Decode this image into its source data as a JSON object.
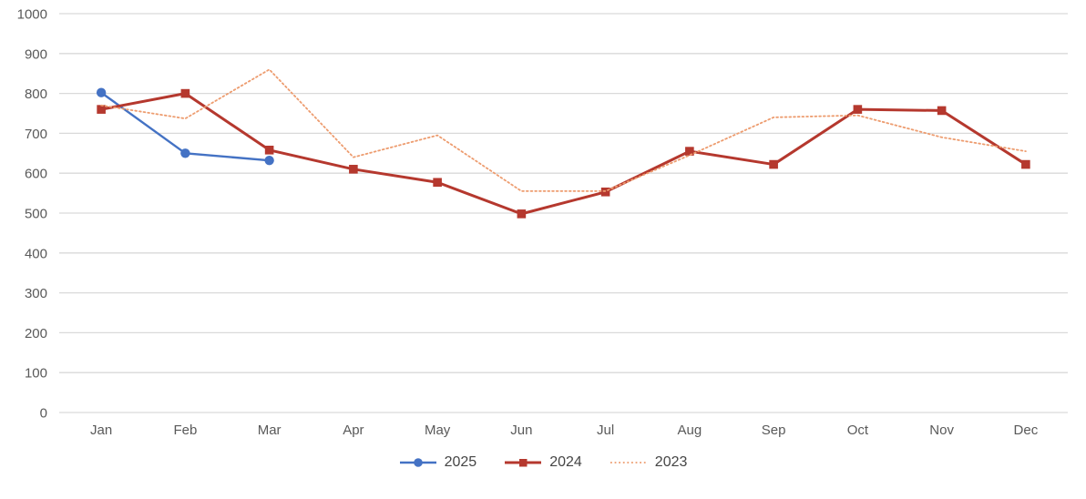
{
  "chart_data": {
    "type": "line",
    "title": "",
    "xlabel": "",
    "ylabel": "",
    "categories": [
      "Jan",
      "Feb",
      "Mar",
      "Apr",
      "May",
      "Jun",
      "Jul",
      "Aug",
      "Sep",
      "Oct",
      "Nov",
      "Dec"
    ],
    "series": [
      {
        "name": "2025",
        "color": "#4472C4",
        "marker": "circle",
        "line_style": "solid",
        "line_width": 2.4,
        "values": [
          802,
          650,
          632,
          null,
          null,
          null,
          null,
          null,
          null,
          null,
          null,
          null
        ]
      },
      {
        "name": "2024",
        "color": "#B5382E",
        "marker": "square",
        "line_style": "solid",
        "line_width": 3,
        "values": [
          760,
          800,
          658,
          610,
          577,
          498,
          553,
          655,
          622,
          760,
          757,
          622
        ]
      },
      {
        "name": "2023",
        "color": "#ED9C6F",
        "marker": "none",
        "line_style": "dotted",
        "line_width": 1.8,
        "values": [
          770,
          737,
          860,
          640,
          695,
          555,
          555,
          645,
          740,
          745,
          690,
          655
        ]
      }
    ],
    "ylim": [
      0,
      1000
    ],
    "y_tick_step": 100,
    "grid": "horizontal",
    "legend_position": "bottom"
  },
  "colors": {
    "background": "#FFFFFF",
    "gridline": "#D9D9D9",
    "axis_text": "#595959",
    "legend_text": "#454545"
  }
}
